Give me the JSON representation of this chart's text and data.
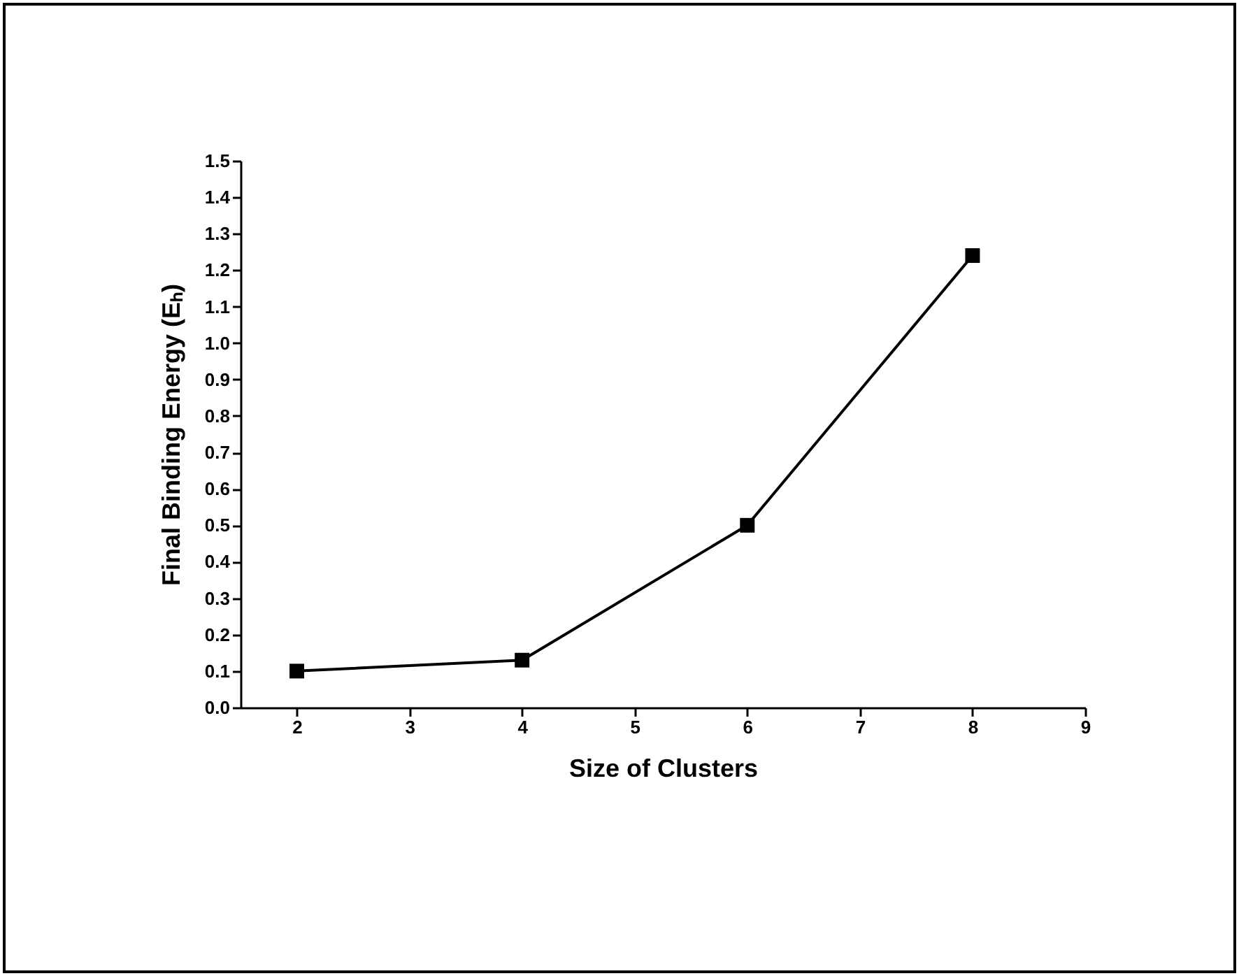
{
  "chart_data": {
    "type": "line",
    "xlabel": "Size of Clusters",
    "ylabel": "Final Binding Energy (Eₕ)",
    "x": [
      2,
      4,
      6,
      8
    ],
    "series": [
      {
        "color": "#000000",
        "values": [
          0.1,
          0.13,
          0.5,
          1.24
        ]
      }
    ],
    "xlim": [
      1.5,
      9
    ],
    "xticks": [
      2,
      3,
      4,
      5,
      6,
      7,
      8,
      9
    ],
    "ylim": [
      0,
      1.5
    ],
    "yticks": [
      {
        "value": 0,
        "label": "0.0"
      },
      {
        "value": 0.1,
        "label": "0.1"
      },
      {
        "value": 0.2,
        "label": "0.2"
      },
      {
        "value": 0.3,
        "label": "0.3"
      },
      {
        "value": 0.4,
        "label": "0.4"
      },
      {
        "value": 0.5,
        "label": "0.5"
      },
      {
        "value": 0.6,
        "label": "0.6"
      },
      {
        "value": 0.7,
        "label": "0.7"
      },
      {
        "value": 0.8,
        "label": "0.8"
      },
      {
        "value": 0.9,
        "label": "0.9"
      },
      {
        "value": 1,
        "label": "1.0"
      },
      {
        "value": 1.1,
        "label": "1.1"
      },
      {
        "value": 1.2,
        "label": "1.2"
      },
      {
        "value": 1.3,
        "label": "1.3"
      },
      {
        "value": 1.4,
        "label": "1.4"
      },
      {
        "value": 1.5,
        "label": "1.5"
      }
    ],
    "grid": false,
    "marker": "square",
    "line_style": "solid"
  }
}
